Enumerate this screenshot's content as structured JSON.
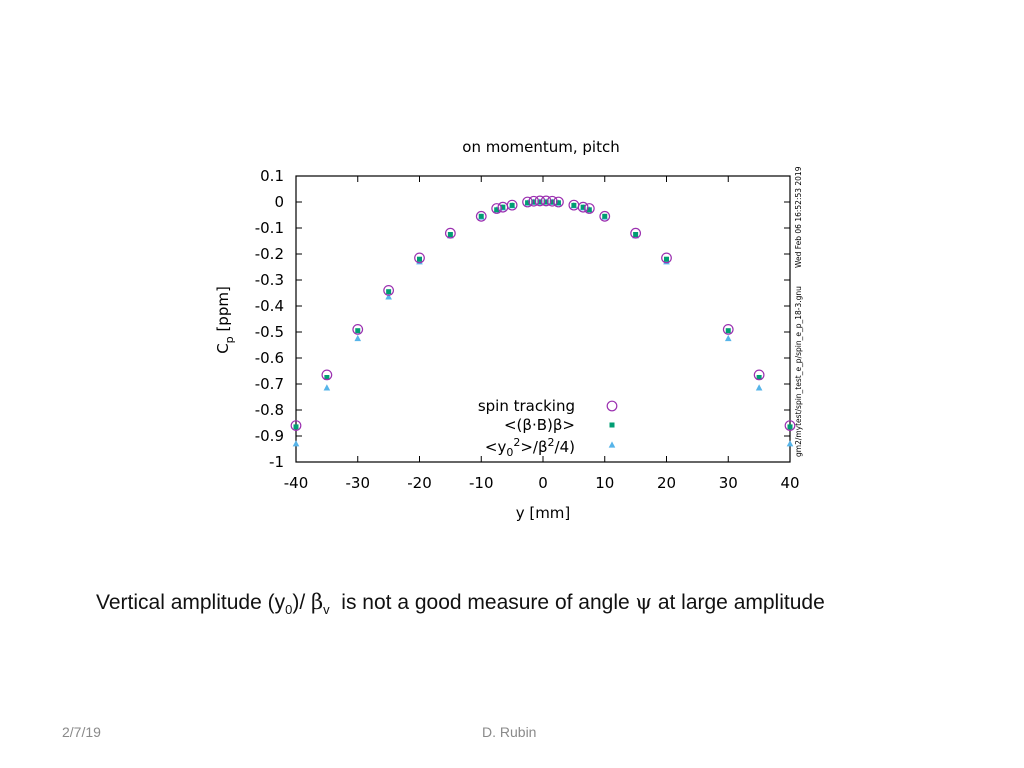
{
  "chart_data": {
    "type": "scatter",
    "title": "on momentum, pitch",
    "xlabel": "y [mm]",
    "ylabel_main": "C",
    "ylabel_sub": "p",
    "ylabel_unit": " [ppm]",
    "xlim": [
      -40,
      40
    ],
    "ylim": [
      -1,
      0.1
    ],
    "xticks": [
      "-40",
      "-30",
      "-20",
      "-10",
      "0",
      "10",
      "20",
      "30",
      "40"
    ],
    "yticks": [
      "0.1",
      "0",
      "-0.1",
      "-0.2",
      "-0.3",
      "-0.4",
      "-0.5",
      "-0.6",
      "-0.7",
      "-0.8",
      "-0.9",
      "-1"
    ],
    "grid": false,
    "legend_position": "bottom-right",
    "series": [
      {
        "name": "spin tracking",
        "marker": "open-circle",
        "color": "#9b30b0",
        "x": [
          -40,
          -35,
          -30,
          -25,
          -20,
          -15,
          -10,
          -7.5,
          -6.5,
          -5,
          -2.5,
          -1.5,
          -0.5,
          0.5,
          1.5,
          2.5,
          5,
          6.5,
          7.5,
          10,
          15,
          20,
          30,
          35,
          40
        ],
        "y": [
          -0.86,
          -0.665,
          -0.49,
          -0.34,
          -0.215,
          -0.12,
          -0.055,
          -0.025,
          -0.02,
          -0.012,
          0,
          0.003,
          0.004,
          0.004,
          0.003,
          0,
          -0.012,
          -0.02,
          -0.025,
          -0.055,
          -0.12,
          -0.215,
          -0.49,
          -0.665,
          -0.86
        ]
      },
      {
        "name": "<(β·B)β>",
        "marker": "filled-square",
        "color": "#009e73",
        "x": [
          -40,
          -35,
          -30,
          -25,
          -20,
          -15,
          -10,
          -7.5,
          -6.5,
          -5,
          -2.5,
          -1.5,
          -0.5,
          0.5,
          1.5,
          2.5,
          5,
          6.5,
          7.5,
          10,
          15,
          20,
          30,
          35,
          40
        ],
        "y": [
          -0.865,
          -0.675,
          -0.495,
          -0.345,
          -0.22,
          -0.125,
          -0.055,
          -0.03,
          -0.02,
          -0.013,
          -0.003,
          0,
          0,
          0,
          0,
          -0.003,
          -0.013,
          -0.02,
          -0.03,
          -0.055,
          -0.125,
          -0.22,
          -0.495,
          -0.675,
          -0.865
        ]
      },
      {
        "name": "<y02>/β2/4)",
        "name_parts": {
          "open": "<y",
          "sub": "0",
          "sup1": "2",
          "mid": ">/β",
          "sup2": "2",
          "close": "/4)"
        },
        "marker": "filled-triangle",
        "color": "#56b4e9",
        "x": [
          -40,
          -35,
          -30,
          -25,
          -20,
          -15,
          -10,
          -7.5,
          -6.5,
          -5,
          -2.5,
          -1.5,
          -0.5,
          0.5,
          1.5,
          2.5,
          5,
          6.5,
          7.5,
          10,
          15,
          20,
          30,
          35,
          40
        ],
        "y": [
          -0.93,
          -0.715,
          -0.525,
          -0.365,
          -0.23,
          -0.13,
          -0.058,
          -0.03,
          -0.022,
          -0.014,
          -0.004,
          -0.001,
          0,
          0,
          -0.001,
          -0.004,
          -0.014,
          -0.022,
          -0.03,
          -0.058,
          -0.13,
          -0.23,
          -0.525,
          -0.715,
          -0.93
        ]
      }
    ]
  },
  "side_note": {
    "timestamp": "Wed Feb 06 16:52:53 2019",
    "filepath": "gm2/mytest/spin_test_e_p/spin_e_p_18-3.gnu"
  },
  "caption": {
    "part1": "Vertical amplitude (y",
    "sub1": "0",
    "part2": ")/ ",
    "beta": "β",
    "sub2": "v",
    "part3": "  is not a good measure of angle ",
    "psi": "ψ",
    "part4": " at large amplitude"
  },
  "footer": {
    "date": "2/7/19",
    "author": "D. Rubin"
  }
}
